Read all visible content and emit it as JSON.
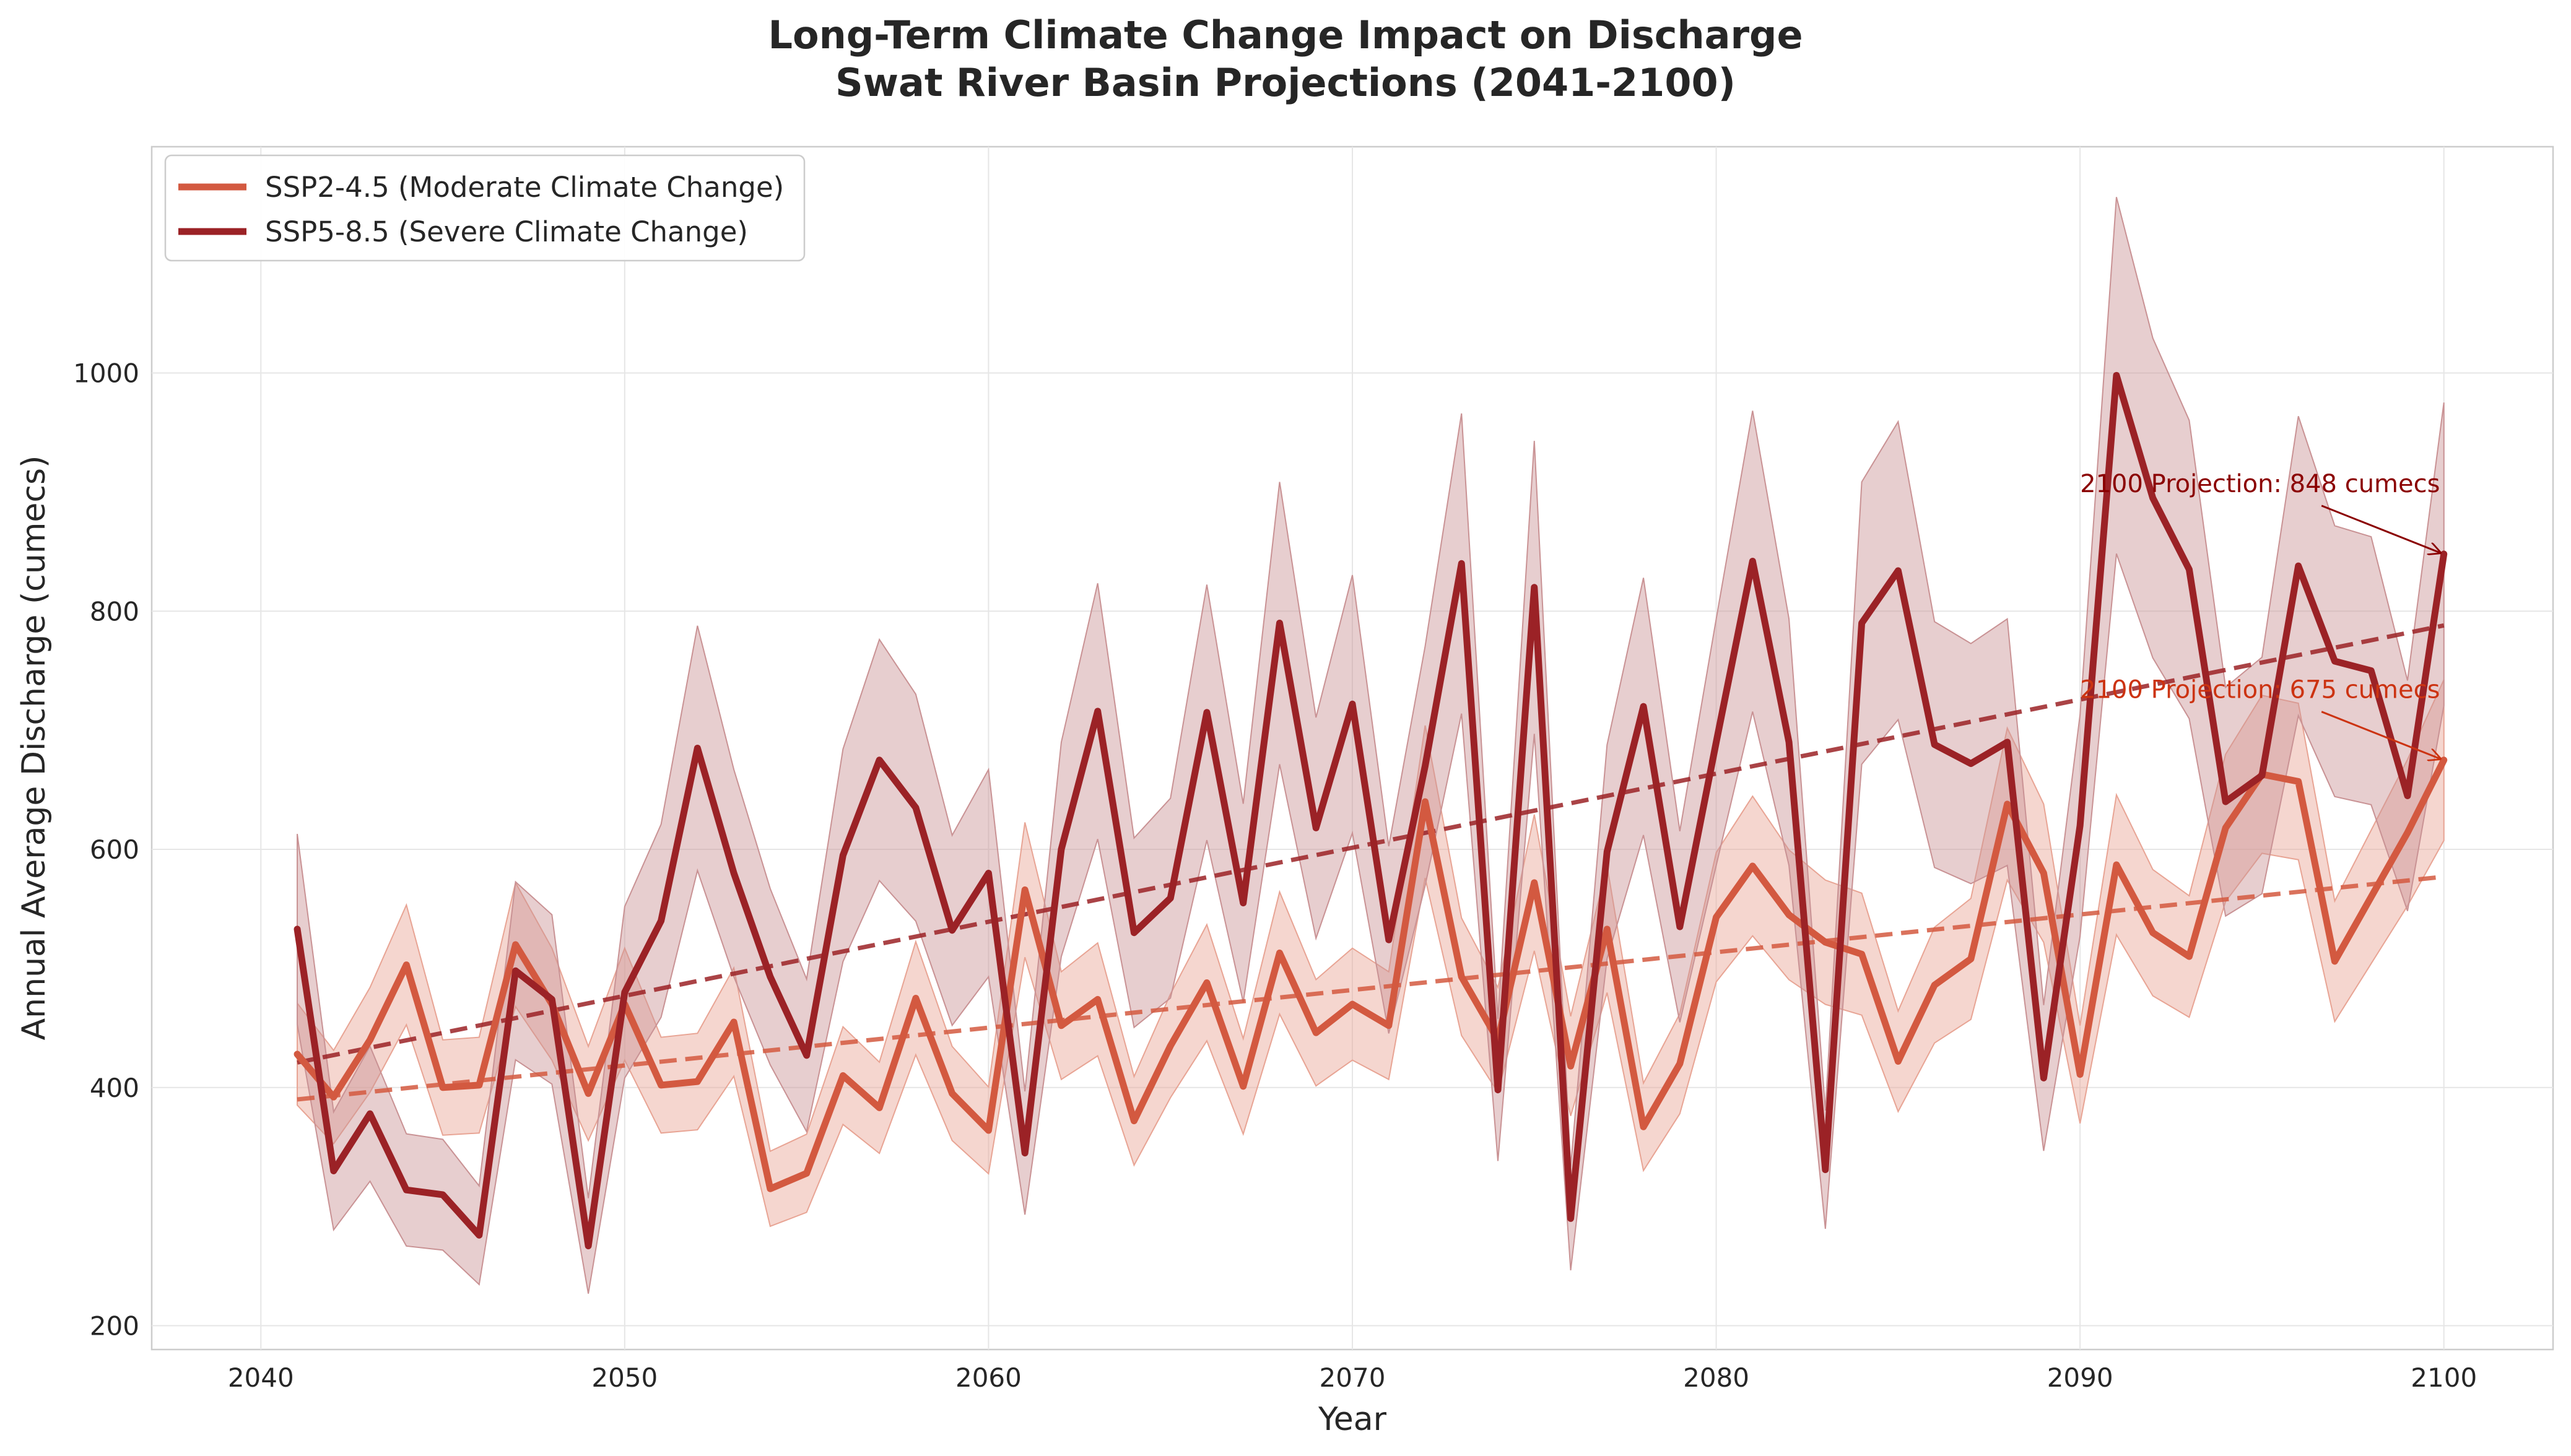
{
  "chart_data": {
    "type": "line",
    "title_line1": "Long-Term Climate Change Impact on Discharge",
    "title_line2": "Swat River Basin Projections (2041-2100)",
    "xlabel": "Year",
    "ylabel": "Annual Average Discharge (cumecs)",
    "xlim": [
      2037,
      2103
    ],
    "ylim": [
      180,
      1190
    ],
    "xticks": [
      2040,
      2050,
      2060,
      2070,
      2080,
      2090,
      2100
    ],
    "yticks": [
      200,
      400,
      600,
      800,
      1000
    ],
    "grid": true,
    "legend_position": "upper-left",
    "x": [
      2041,
      2042,
      2043,
      2044,
      2045,
      2046,
      2047,
      2048,
      2049,
      2050,
      2051,
      2052,
      2053,
      2054,
      2055,
      2056,
      2057,
      2058,
      2059,
      2060,
      2061,
      2062,
      2063,
      2064,
      2065,
      2066,
      2067,
      2068,
      2069,
      2070,
      2071,
      2072,
      2073,
      2074,
      2075,
      2076,
      2077,
      2078,
      2079,
      2080,
      2081,
      2082,
      2083,
      2084,
      2085,
      2086,
      2087,
      2088,
      2089,
      2090,
      2091,
      2092,
      2093,
      2094,
      2095,
      2096,
      2097,
      2098,
      2099,
      2100
    ],
    "series": [
      {
        "name": "SSP2-4.5 (Moderate Climate Change)",
        "color": "#d35940",
        "band_color": "#e8a494",
        "band_fraction": 0.1,
        "values": [
          428,
          392,
          440,
          503,
          400,
          402,
          520,
          470,
          395,
          470,
          402,
          405,
          455,
          315,
          328,
          410,
          383,
          475,
          395,
          364,
          566,
          452,
          474,
          372,
          435,
          488,
          401,
          513,
          446,
          470,
          452,
          640,
          493,
          440,
          572,
          418,
          533,
          367,
          420,
          543,
          586,
          545,
          522,
          512,
          422,
          486,
          508,
          638,
          580,
          411,
          587,
          530,
          510,
          618,
          663,
          657,
          506,
          560,
          614,
          675
        ],
        "trend": {
          "start": 390,
          "end": 577
        }
      },
      {
        "name": "SSP5-8.5 (Severe Climate Change)",
        "color": "#9b2226",
        "band_color": "#c99294",
        "band_fraction": 0.15,
        "values": [
          533,
          330,
          378,
          314,
          310,
          276,
          498,
          474,
          267,
          480,
          540,
          685,
          580,
          493,
          427,
          595,
          675,
          635,
          532,
          580,
          345,
          600,
          716,
          530,
          559,
          715,
          555,
          790,
          618,
          722,
          524,
          670,
          840,
          398,
          820,
          290,
          598,
          720,
          535,
          690,
          842,
          690,
          331,
          790,
          834,
          688,
          672,
          690,
          408,
          620,
          998,
          895,
          835,
          640,
          662,
          838,
          758,
          750,
          645,
          848
        ],
        "trend": {
          "start": 421,
          "end": 788
        }
      }
    ],
    "annotations": [
      {
        "text": "2100 Projection: 848 cumecs",
        "color": "#8b0000",
        "target_x": 2100,
        "target_y": 848,
        "text_x": 2090,
        "text_y": 900
      },
      {
        "text": "2100 Projection: 675 cumecs",
        "color": "#cc3311",
        "target_x": 2100,
        "target_y": 675,
        "text_x": 2090,
        "text_y": 727
      }
    ]
  }
}
